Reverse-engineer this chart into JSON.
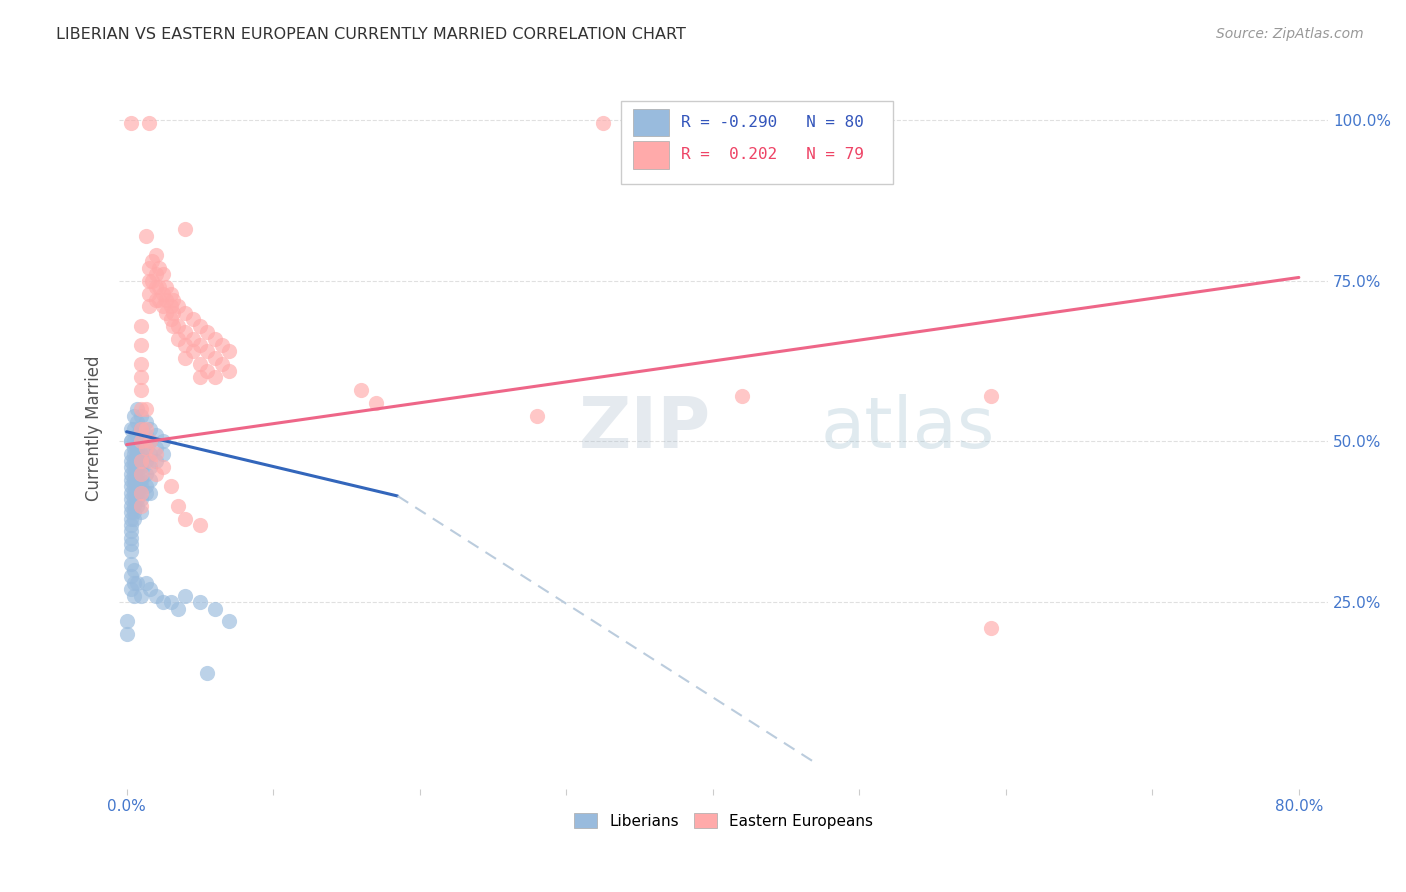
{
  "title": "LIBERIAN VS EASTERN EUROPEAN CURRENTLY MARRIED CORRELATION CHART",
  "source": "Source: ZipAtlas.com",
  "ylabel": "Currently Married",
  "blue_color": "#99BBDD",
  "pink_color": "#FFAAAA",
  "blue_line_color": "#3366BB",
  "pink_line_color": "#EE6688",
  "blue_dash_color": "#BBCCDD",
  "watermark_zip": "ZIP",
  "watermark_atlas": "atlas",
  "liberian_scatter": [
    [
      0.003,
      0.52
    ],
    [
      0.003,
      0.5
    ],
    [
      0.003,
      0.48
    ],
    [
      0.003,
      0.47
    ],
    [
      0.003,
      0.46
    ],
    [
      0.003,
      0.45
    ],
    [
      0.003,
      0.44
    ],
    [
      0.003,
      0.43
    ],
    [
      0.003,
      0.42
    ],
    [
      0.003,
      0.41
    ],
    [
      0.003,
      0.4
    ],
    [
      0.003,
      0.39
    ],
    [
      0.003,
      0.38
    ],
    [
      0.003,
      0.37
    ],
    [
      0.003,
      0.36
    ],
    [
      0.003,
      0.35
    ],
    [
      0.003,
      0.34
    ],
    [
      0.003,
      0.33
    ],
    [
      0.003,
      0.5
    ],
    [
      0.005,
      0.54
    ],
    [
      0.005,
      0.52
    ],
    [
      0.005,
      0.5
    ],
    [
      0.005,
      0.49
    ],
    [
      0.005,
      0.48
    ],
    [
      0.005,
      0.47
    ],
    [
      0.005,
      0.46
    ],
    [
      0.005,
      0.45
    ],
    [
      0.005,
      0.44
    ],
    [
      0.005,
      0.43
    ],
    [
      0.005,
      0.42
    ],
    [
      0.005,
      0.41
    ],
    [
      0.005,
      0.4
    ],
    [
      0.005,
      0.39
    ],
    [
      0.005,
      0.38
    ],
    [
      0.007,
      0.55
    ],
    [
      0.007,
      0.53
    ],
    [
      0.007,
      0.51
    ],
    [
      0.007,
      0.49
    ],
    [
      0.007,
      0.48
    ],
    [
      0.007,
      0.47
    ],
    [
      0.007,
      0.46
    ],
    [
      0.007,
      0.45
    ],
    [
      0.007,
      0.44
    ],
    [
      0.007,
      0.43
    ],
    [
      0.007,
      0.42
    ],
    [
      0.007,
      0.41
    ],
    [
      0.007,
      0.4
    ],
    [
      0.01,
      0.54
    ],
    [
      0.01,
      0.52
    ],
    [
      0.01,
      0.5
    ],
    [
      0.01,
      0.48
    ],
    [
      0.01,
      0.46
    ],
    [
      0.01,
      0.44
    ],
    [
      0.01,
      0.43
    ],
    [
      0.01,
      0.41
    ],
    [
      0.01,
      0.39
    ],
    [
      0.013,
      0.53
    ],
    [
      0.013,
      0.51
    ],
    [
      0.013,
      0.49
    ],
    [
      0.013,
      0.47
    ],
    [
      0.013,
      0.45
    ],
    [
      0.013,
      0.43
    ],
    [
      0.013,
      0.42
    ],
    [
      0.016,
      0.52
    ],
    [
      0.016,
      0.5
    ],
    [
      0.016,
      0.48
    ],
    [
      0.016,
      0.46
    ],
    [
      0.016,
      0.44
    ],
    [
      0.016,
      0.42
    ],
    [
      0.02,
      0.51
    ],
    [
      0.02,
      0.49
    ],
    [
      0.02,
      0.47
    ],
    [
      0.025,
      0.5
    ],
    [
      0.025,
      0.48
    ],
    [
      0.003,
      0.31
    ],
    [
      0.003,
      0.29
    ],
    [
      0.003,
      0.27
    ],
    [
      0.005,
      0.3
    ],
    [
      0.005,
      0.28
    ],
    [
      0.005,
      0.26
    ],
    [
      0.007,
      0.28
    ],
    [
      0.01,
      0.26
    ],
    [
      0.013,
      0.28
    ],
    [
      0.016,
      0.27
    ],
    [
      0.02,
      0.26
    ],
    [
      0.025,
      0.25
    ],
    [
      0.03,
      0.25
    ],
    [
      0.04,
      0.26
    ],
    [
      0.05,
      0.25
    ],
    [
      0.035,
      0.24
    ],
    [
      0.055,
      0.14
    ],
    [
      0.06,
      0.24
    ],
    [
      0.07,
      0.22
    ],
    [
      0.0,
      0.22
    ],
    [
      0.0,
      0.2
    ]
  ],
  "eastern_scatter": [
    [
      0.003,
      0.995
    ],
    [
      0.015,
      0.995
    ],
    [
      0.325,
      0.995
    ],
    [
      0.013,
      0.82
    ],
    [
      0.015,
      0.77
    ],
    [
      0.015,
      0.75
    ],
    [
      0.015,
      0.73
    ],
    [
      0.015,
      0.71
    ],
    [
      0.017,
      0.78
    ],
    [
      0.017,
      0.75
    ],
    [
      0.02,
      0.79
    ],
    [
      0.02,
      0.76
    ],
    [
      0.02,
      0.74
    ],
    [
      0.02,
      0.72
    ],
    [
      0.022,
      0.77
    ],
    [
      0.022,
      0.74
    ],
    [
      0.022,
      0.72
    ],
    [
      0.025,
      0.76
    ],
    [
      0.025,
      0.73
    ],
    [
      0.025,
      0.71
    ],
    [
      0.027,
      0.74
    ],
    [
      0.027,
      0.72
    ],
    [
      0.027,
      0.7
    ],
    [
      0.03,
      0.73
    ],
    [
      0.03,
      0.71
    ],
    [
      0.03,
      0.69
    ],
    [
      0.032,
      0.72
    ],
    [
      0.032,
      0.7
    ],
    [
      0.032,
      0.68
    ],
    [
      0.035,
      0.71
    ],
    [
      0.035,
      0.68
    ],
    [
      0.035,
      0.66
    ],
    [
      0.04,
      0.7
    ],
    [
      0.04,
      0.67
    ],
    [
      0.04,
      0.65
    ],
    [
      0.04,
      0.63
    ],
    [
      0.045,
      0.69
    ],
    [
      0.045,
      0.66
    ],
    [
      0.045,
      0.64
    ],
    [
      0.05,
      0.68
    ],
    [
      0.05,
      0.65
    ],
    [
      0.05,
      0.62
    ],
    [
      0.05,
      0.6
    ],
    [
      0.055,
      0.67
    ],
    [
      0.055,
      0.64
    ],
    [
      0.055,
      0.61
    ],
    [
      0.06,
      0.66
    ],
    [
      0.06,
      0.63
    ],
    [
      0.06,
      0.6
    ],
    [
      0.065,
      0.65
    ],
    [
      0.065,
      0.62
    ],
    [
      0.07,
      0.64
    ],
    [
      0.07,
      0.61
    ],
    [
      0.01,
      0.68
    ],
    [
      0.01,
      0.65
    ],
    [
      0.01,
      0.62
    ],
    [
      0.01,
      0.6
    ],
    [
      0.01,
      0.58
    ],
    [
      0.01,
      0.55
    ],
    [
      0.01,
      0.52
    ],
    [
      0.01,
      0.5
    ],
    [
      0.01,
      0.47
    ],
    [
      0.01,
      0.45
    ],
    [
      0.01,
      0.42
    ],
    [
      0.01,
      0.4
    ],
    [
      0.013,
      0.55
    ],
    [
      0.013,
      0.52
    ],
    [
      0.013,
      0.49
    ],
    [
      0.016,
      0.5
    ],
    [
      0.016,
      0.47
    ],
    [
      0.02,
      0.48
    ],
    [
      0.02,
      0.45
    ],
    [
      0.025,
      0.46
    ],
    [
      0.03,
      0.43
    ],
    [
      0.035,
      0.4
    ],
    [
      0.04,
      0.38
    ],
    [
      0.05,
      0.37
    ],
    [
      0.16,
      0.58
    ],
    [
      0.17,
      0.56
    ],
    [
      0.28,
      0.54
    ],
    [
      0.42,
      0.57
    ],
    [
      0.59,
      0.57
    ],
    [
      0.59,
      0.21
    ],
    [
      0.04,
      0.83
    ]
  ],
  "blue_regression": {
    "x_start": 0.0,
    "y_start": 0.515,
    "x_end": 0.185,
    "y_end": 0.415
  },
  "blue_dash_regression": {
    "x_start": 0.185,
    "y_start": 0.415,
    "x_end": 0.47,
    "y_end": 0.0
  },
  "pink_regression": {
    "x_start": 0.0,
    "y_start": 0.495,
    "x_end": 0.8,
    "y_end": 0.755
  },
  "xlim": [
    -0.005,
    0.82
  ],
  "ylim": [
    -0.04,
    1.08
  ],
  "x_ticks": [
    0.0,
    0.1,
    0.2,
    0.3,
    0.4,
    0.5,
    0.6,
    0.7,
    0.8
  ],
  "y_ticks": [
    0.25,
    0.5,
    0.75,
    1.0
  ],
  "y_tick_labels": [
    "25.0%",
    "50.0%",
    "75.0%",
    "100.0%"
  ]
}
